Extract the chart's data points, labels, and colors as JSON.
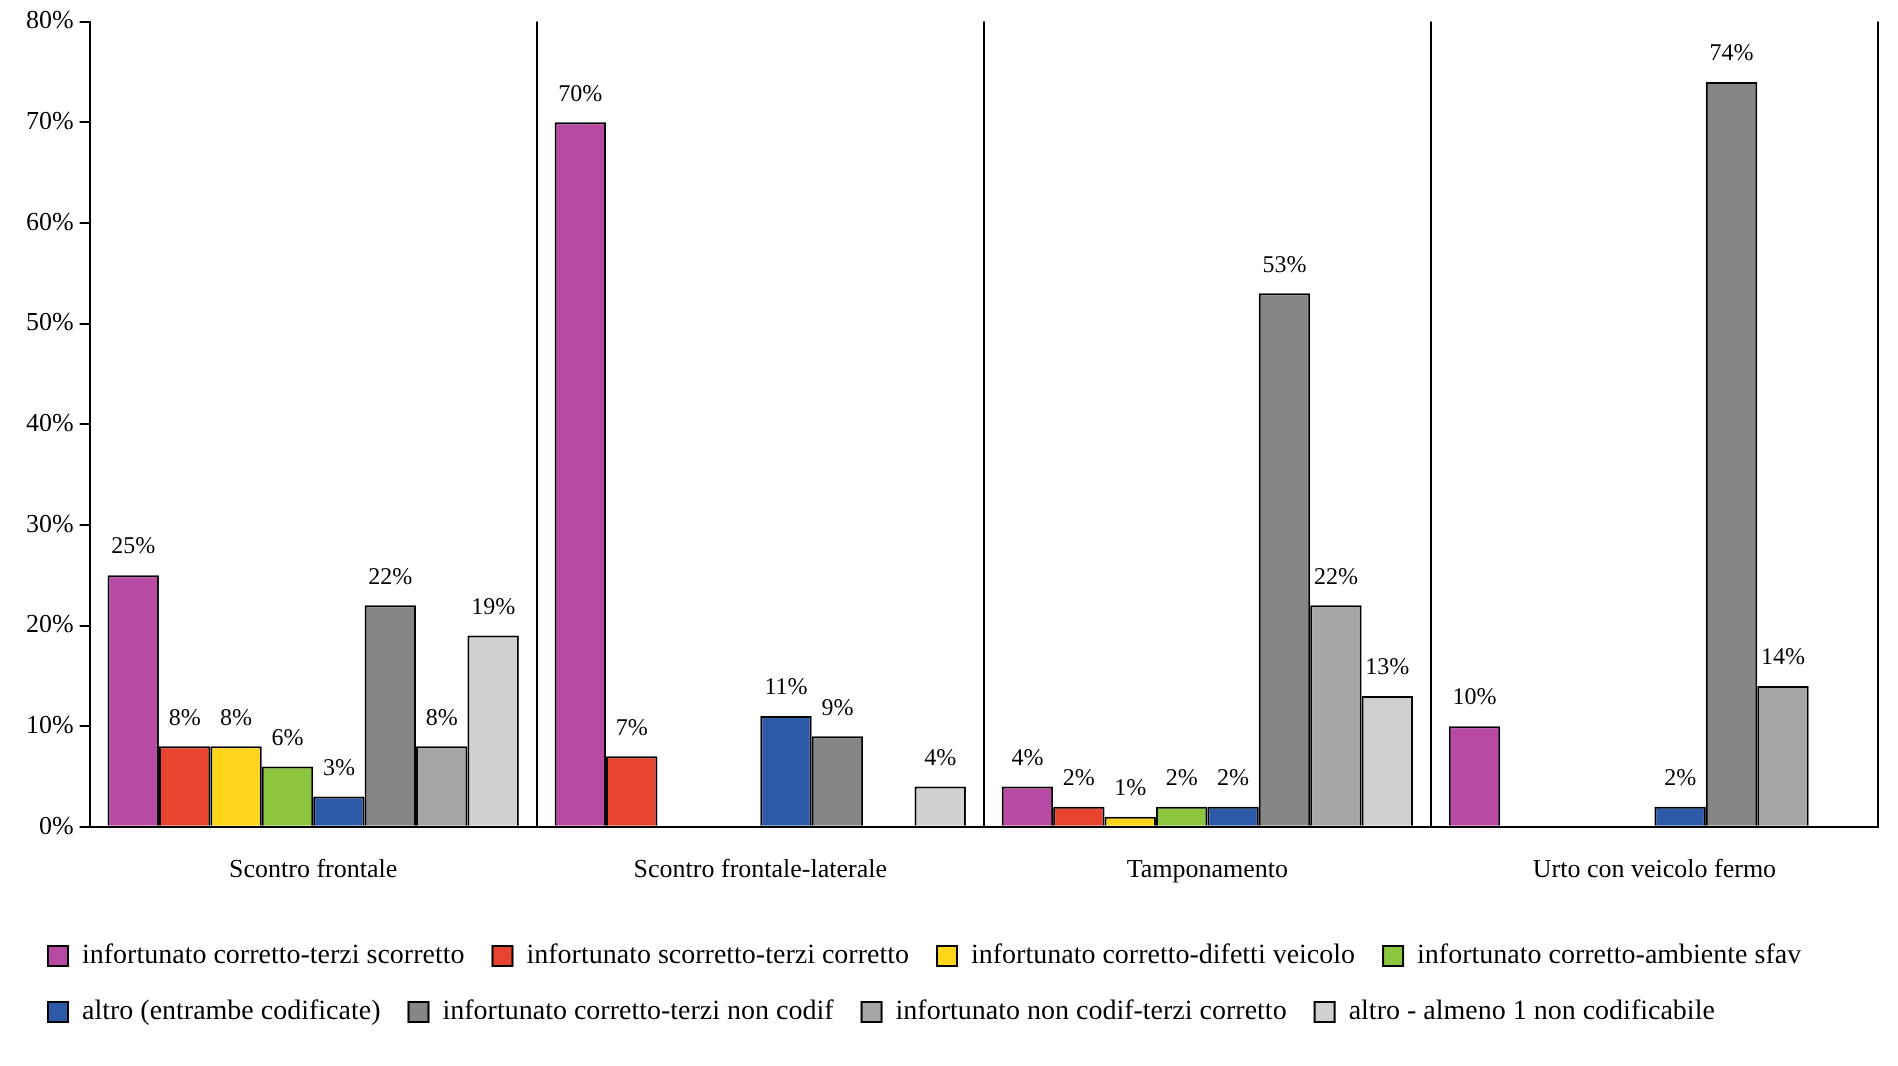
{
  "chart_data": {
    "type": "bar",
    "categories": [
      "Scontro frontale",
      "Scontro frontale-laterale",
      "Tamponamento",
      "Urto con veicolo fermo"
    ],
    "ylim": [
      0,
      80
    ],
    "yticks": [
      {
        "value": 0,
        "label": "0%"
      },
      {
        "value": 10,
        "label": "10%"
      },
      {
        "value": 20,
        "label": "20%"
      },
      {
        "value": 30,
        "label": "30%"
      },
      {
        "value": 40,
        "label": "40%"
      },
      {
        "value": 50,
        "label": "50%"
      },
      {
        "value": 60,
        "label": "60%"
      },
      {
        "value": 70,
        "label": "70%"
      },
      {
        "value": 80,
        "label": "80%"
      }
    ],
    "grid": "x",
    "legend": "bottom",
    "series": [
      {
        "name": "infortunato corretto-terzi scorretto",
        "color": "#b84aa3",
        "values": [
          25,
          70,
          4,
          10
        ],
        "value_labels": [
          "25%",
          "70%",
          "4%",
          "10%"
        ]
      },
      {
        "name": "infortunato scorretto-terzi corretto",
        "color": "#e8432e",
        "values": [
          8,
          7,
          2,
          null
        ],
        "value_labels": [
          "8%",
          "7%",
          "2%",
          null
        ]
      },
      {
        "name": "infortunato corretto-difetti veicolo",
        "color": "#ffd51a",
        "values": [
          8,
          null,
          1,
          null
        ],
        "value_labels": [
          "8%",
          null,
          "1%",
          null
        ]
      },
      {
        "name": "infortunato corretto-ambiente sfav",
        "color": "#8dc63f",
        "values": [
          6,
          null,
          2,
          null
        ],
        "value_labels": [
          "6%",
          null,
          "2%",
          null
        ]
      },
      {
        "name": "altro (entrambe codificate)",
        "color": "#2c5aa8",
        "values": [
          3,
          11,
          2,
          2
        ],
        "value_labels": [
          "3%",
          "11%",
          "2%",
          "2%"
        ]
      },
      {
        "name": "infortunato corretto-terzi non codif",
        "color": "#868686",
        "values": [
          22,
          9,
          53,
          74
        ],
        "value_labels": [
          "22%",
          "9%",
          "53%",
          "74%"
        ]
      },
      {
        "name": "infortunato non codif-terzi corretto",
        "color": "#a6a6a6",
        "values": [
          8,
          null,
          22,
          14
        ],
        "value_labels": [
          "8%",
          null,
          "22%",
          "14%"
        ]
      },
      {
        "name": "altro - almeno 1 non codificabile",
        "color": "#d0d0d0",
        "values": [
          19,
          4,
          13,
          null
        ],
        "value_labels": [
          "19%",
          "4%",
          "13%",
          null
        ]
      }
    ]
  }
}
